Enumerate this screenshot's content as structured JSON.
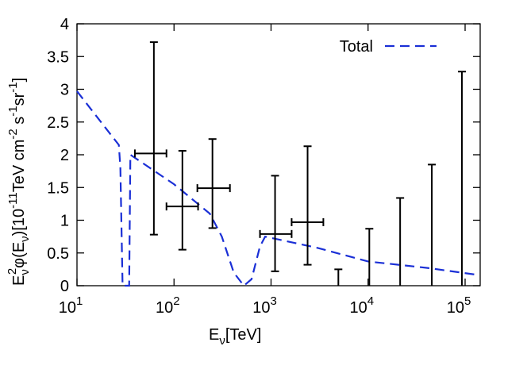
{
  "chart_data": {
    "type": "errorbar",
    "x_label": [
      "E",
      "ν",
      "[TeV]"
    ],
    "y_label": [
      "E",
      "ν",
      "2",
      "φ(E",
      "ν",
      ")[10",
      "-11",
      "TeV cm",
      "-2",
      " s",
      "-1",
      "sr",
      "-1",
      "]"
    ],
    "xlim": [
      10,
      143000
    ],
    "x_log": true,
    "xticks": [
      {
        "value": 10,
        "label": "10",
        "label_exponent": "1"
      },
      {
        "value": 100,
        "label": "10",
        "label_exponent": "2"
      },
      {
        "value": 1000,
        "label": "10",
        "label_exponent": "3"
      },
      {
        "value": 10000,
        "label": "10",
        "label_exponent": "4"
      },
      {
        "value": 100000,
        "label": "10",
        "label_exponent": "5"
      }
    ],
    "ylim": [
      0,
      4
    ],
    "yticks": [
      0,
      0.5,
      1,
      1.5,
      2,
      2.5,
      3,
      3.5,
      4
    ],
    "legend": "top-right",
    "series": [
      {
        "name": "Total",
        "kind": "line",
        "color": "#1a2fd6",
        "dashed": true,
        "x": [
          10,
          27,
          28,
          29.5,
          34.5,
          35.5,
          100,
          234,
          311,
          413,
          525,
          630,
          769,
          870,
          2970,
          10000,
          41700,
          127700
        ],
        "values": [
          2.97,
          2.15,
          1.8,
          0,
          0,
          2.0,
          1.55,
          1.1,
          0.75,
          0.2,
          0,
          0.1,
          0.6,
          0.75,
          0.58,
          0.37,
          0.27,
          0.17
        ]
      },
      {
        "kind": "points",
        "color": "#000000",
        "x": [
          62,
          122,
          249,
          1100,
          2380
        ],
        "values": [
          2.02,
          1.21,
          1.49,
          0.79,
          0.97
        ],
        "ylow": [
          0.78,
          0.55,
          0.88,
          0.22,
          0.32
        ],
        "yhigh": [
          3.72,
          2.06,
          2.24,
          1.68,
          2.13
        ],
        "xlow": [
          39.5,
          83.6,
          174,
          769,
          1630
        ],
        "xhigh": [
          83.6,
          177,
          377,
          1630,
          3460
        ]
      },
      {
        "kind": "upper_limits",
        "color": "#000000",
        "x": [
          4940,
          10300,
          21400,
          45400,
          92700
        ],
        "values": [
          0.25,
          0.87,
          1.34,
          1.85,
          3.27
        ]
      }
    ]
  }
}
